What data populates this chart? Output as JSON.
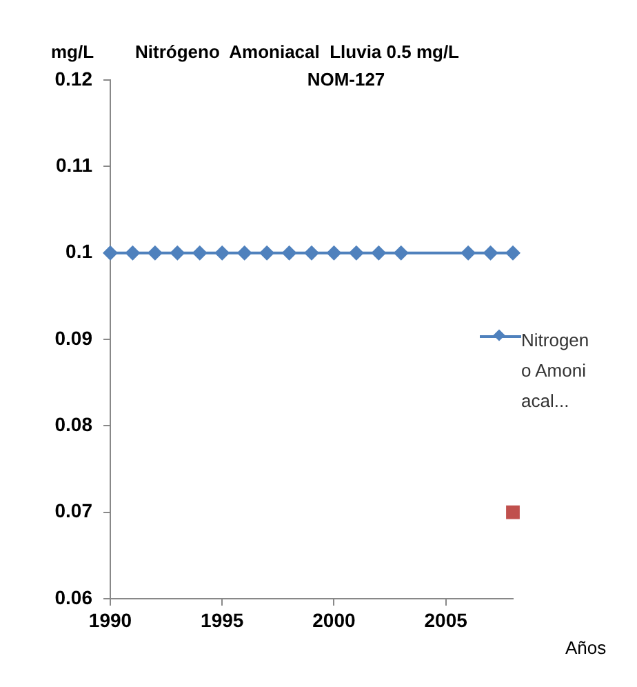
{
  "chart_data": {
    "type": "line",
    "title": "Nitrógeno  Amoniacal  Lluvia 0.5 mg/L",
    "subtitle": "NOM-127",
    "ylabel": "mg/L",
    "xlabel": "Años",
    "series": [
      {
        "name": "Nitrogeno Amoniacal...",
        "type": "line",
        "color": "#4f81bd",
        "marker": "diamond",
        "x": [
          1990,
          1991,
          1992,
          1993,
          1994,
          1995,
          1996,
          1997,
          1998,
          1999,
          2000,
          2001,
          2002,
          2003,
          2006,
          2007,
          2008
        ],
        "values": [
          0.1,
          0.1,
          0.1,
          0.1,
          0.1,
          0.1,
          0.1,
          0.1,
          0.1,
          0.1,
          0.1,
          0.1,
          0.1,
          0.1,
          0.1,
          0.1,
          0.1
        ]
      },
      {
        "type": "scatter",
        "color": "#c0504d",
        "marker": "square",
        "x": [
          2008
        ],
        "values": [
          0.07
        ]
      }
    ],
    "xlim": [
      1990,
      2008
    ],
    "xticks": [
      1990,
      1995,
      2000,
      2005
    ],
    "ylim": [
      0.06,
      0.12
    ],
    "yticks": [
      0.06,
      0.07,
      0.08,
      0.09,
      0.1,
      0.11,
      0.12
    ],
    "grid": false,
    "legend": "right"
  }
}
